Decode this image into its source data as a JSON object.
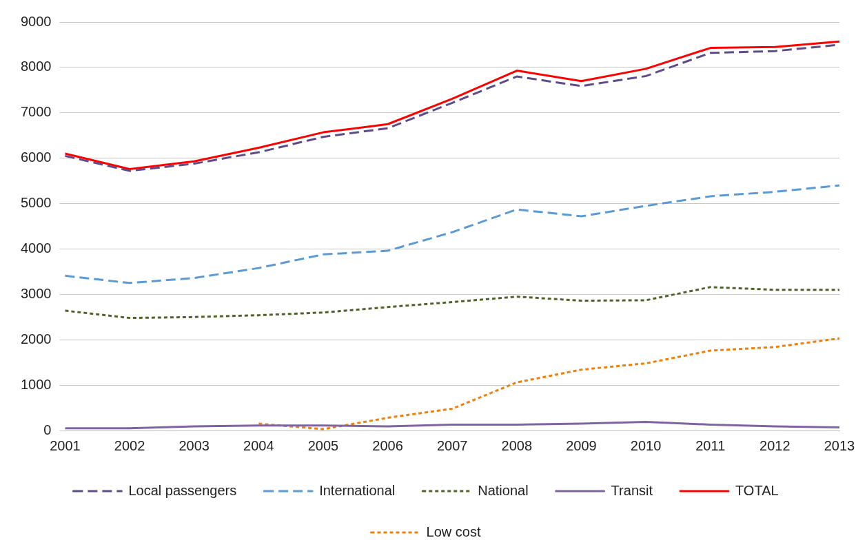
{
  "chart_data": {
    "type": "line",
    "categories": [
      "2001",
      "2002",
      "2003",
      "2004",
      "2005",
      "2006",
      "2007",
      "2008",
      "2009",
      "2010",
      "2011",
      "2012",
      "2013"
    ],
    "series": [
      {
        "name": "Local passengers",
        "color": "#5f4b8b",
        "line_style": "dashed",
        "values": [
          6050,
          5720,
          5880,
          6130,
          6470,
          6660,
          7220,
          7800,
          7590,
          7810,
          8320,
          8360,
          8500
        ]
      },
      {
        "name": "International",
        "color": "#5b9bd5",
        "line_style": "dashed",
        "values": [
          3410,
          3250,
          3360,
          3580,
          3880,
          3960,
          4370,
          4870,
          4720,
          4950,
          5160,
          5260,
          5400
        ]
      },
      {
        "name": "National",
        "color": "#4f6228",
        "line_style": "dotted",
        "values": [
          2640,
          2480,
          2500,
          2540,
          2600,
          2720,
          2830,
          2950,
          2860,
          2870,
          3160,
          3100,
          3100
        ]
      },
      {
        "name": "Transit",
        "color": "#8064a2",
        "line_style": "solid",
        "values": [
          50,
          50,
          90,
          110,
          110,
          90,
          130,
          130,
          150,
          190,
          130,
          90,
          70
        ]
      },
      {
        "name": "TOTAL",
        "color": "#ff0000",
        "line_style": "solid",
        "values": [
          6100,
          5760,
          5930,
          6230,
          6570,
          6750,
          7310,
          7930,
          7700,
          7970,
          8430,
          8450,
          8570
        ]
      },
      {
        "name": "Low cost",
        "color": "#f07f09",
        "line_style": "dotted",
        "values": [
          null,
          null,
          null,
          150,
          30,
          280,
          480,
          1060,
          1340,
          1480,
          1760,
          1840,
          2030
        ]
      }
    ],
    "ylim": [
      0,
      9000
    ],
    "yticks": [
      0,
      1000,
      2000,
      3000,
      4000,
      5000,
      6000,
      7000,
      8000,
      9000
    ],
    "grid": "y",
    "legend": "bottom",
    "marker": "none"
  }
}
